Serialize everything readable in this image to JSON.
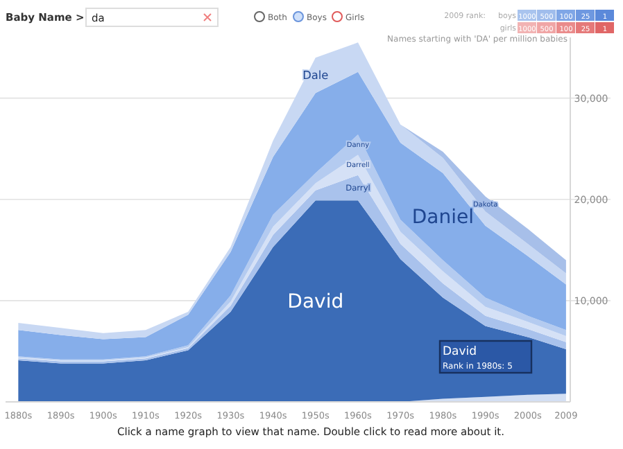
{
  "chart_data": {
    "type": "area",
    "stacked": true,
    "subtitle": "Names starting with 'DA' per million babies",
    "x": [
      1880,
      1890,
      1900,
      1910,
      1920,
      1930,
      1940,
      1950,
      1960,
      1970,
      1980,
      1990,
      2000,
      2009
    ],
    "xlim": [
      1877,
      2010
    ],
    "xticks": [
      {
        "value": 1880,
        "label": "1880s"
      },
      {
        "value": 1890,
        "label": "1890s"
      },
      {
        "value": 1900,
        "label": "1900s"
      },
      {
        "value": 1910,
        "label": "1910s"
      },
      {
        "value": 1920,
        "label": "1920s"
      },
      {
        "value": 1930,
        "label": "1930s"
      },
      {
        "value": 1940,
        "label": "1940s"
      },
      {
        "value": 1950,
        "label": "1950s"
      },
      {
        "value": 1960,
        "label": "1960s"
      },
      {
        "value": 1970,
        "label": "1970s"
      },
      {
        "value": 1980,
        "label": "1980s"
      },
      {
        "value": 1990,
        "label": "1990s"
      },
      {
        "value": 2000,
        "label": "2000s"
      },
      {
        "value": 2009,
        "label": "2009"
      }
    ],
    "ylim": [
      0,
      36000
    ],
    "yticks": [
      {
        "value": 10000,
        "label": "10,000"
      },
      {
        "value": 20000,
        "label": "20,000"
      },
      {
        "value": 30000,
        "label": "30,000"
      }
    ],
    "grid": "y",
    "series": [
      {
        "color": "#d3dff3",
        "values": [
          0,
          0,
          0,
          0,
          0,
          0,
          0,
          0,
          0,
          0,
          300,
          500,
          700,
          800
        ]
      },
      {
        "name": "David",
        "color": "#3b6cb7",
        "values": [
          4100,
          3800,
          3800,
          4100,
          5100,
          8900,
          15300,
          19900,
          19900,
          14100,
          10000,
          7000,
          5700,
          4400
        ]
      },
      {
        "name": "Darryl",
        "color": "#a9c2ec",
        "values": [
          200,
          200,
          200,
          200,
          200,
          600,
          1200,
          1000,
          2500,
          1500,
          1400,
          1000,
          800,
          700
        ]
      },
      {
        "name": "Darrell",
        "color": "#d5e1f6",
        "values": [
          100,
          100,
          100,
          100,
          100,
          400,
          800,
          700,
          2000,
          1200,
          1200,
          900,
          700,
          600
        ]
      },
      {
        "name": "Danny",
        "color": "#b4cbf0",
        "values": [
          100,
          100,
          100,
          100,
          200,
          600,
          1200,
          1000,
          2000,
          1200,
          1100,
          900,
          600,
          600
        ]
      },
      {
        "name": "Daniel",
        "color": "#86aeea",
        "values": [
          2600,
          2400,
          2000,
          1900,
          3000,
          4300,
          5700,
          7900,
          6200,
          7600,
          8600,
          7100,
          5900,
          4500
        ]
      },
      {
        "name": "Dale",
        "color": "#c8d8f3",
        "values": [
          700,
          700,
          600,
          700,
          300,
          500,
          1600,
          3500,
          2900,
          1800,
          1500,
          1400,
          1200,
          1100
        ]
      },
      {
        "name": "Dakota",
        "color": "#a7bfe9",
        "values": [
          0,
          0,
          0,
          0,
          0,
          0,
          0,
          0,
          0,
          0,
          600,
          1500,
          1500,
          1300
        ]
      }
    ],
    "annotations": [
      "Baby Name >",
      "da",
      "Both",
      "Boys",
      "Girls",
      "2009 rank:",
      "boys",
      "girls",
      "1000",
      "500",
      "100",
      "25",
      "1",
      "David",
      "Rank in 1980s: 5",
      "Click a name graph to view that name. Double click to read more about it."
    ]
  }
}
